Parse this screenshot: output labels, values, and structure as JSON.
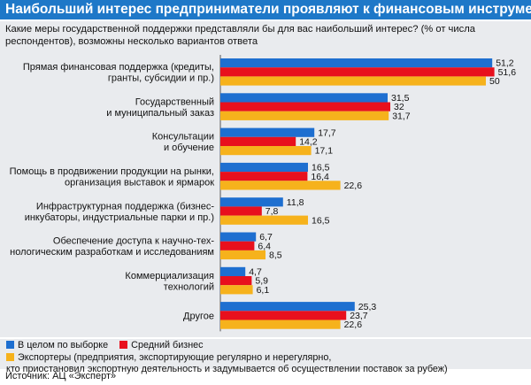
{
  "title": "Наибольший интерес предприниматели проявляют к финансовым инструментам господдержки",
  "subtitle": "Какие меры государственной поддержки представляли бы для вас наибольший интерес? (% от числа респондентов), возможны несколько вариантов ответа",
  "source": "Источник: АЦ «Эксперт»",
  "colors": {
    "series1": "#1e6fd0",
    "series2": "#e8101d",
    "series3": "#f6b21c"
  },
  "legend": [
    {
      "label": "В целом по выборке"
    },
    {
      "label": "Средний бизнес"
    },
    {
      "label": "Экспортеры (предприятия, экспортирующие регулярно и нерегулярно,"
    },
    {
      "label": "кто приостановил экспортную деятельность и задумывается об осуществлении поставок за рубеж)"
    }
  ],
  "chart_data": {
    "type": "bar",
    "orientation": "horizontal",
    "categories": [
      [
        "Прямая финансовая поддержка (кредиты,",
        "гранты, субсидии и пр.)"
      ],
      [
        "Государственный",
        "и муниципальный заказ"
      ],
      [
        "Консультации",
        "и обучение"
      ],
      [
        "Помощь в продвижении продукции на рынки,",
        "организация выставок и ярмарок"
      ],
      [
        "Инфраструктурная поддержка (бизнес-",
        "инкубаторы, индустриальные парки и пр.)"
      ],
      [
        "Обеспечение доступа к научно-тех-",
        "нологическим разработкам и исследованиям"
      ],
      [
        "Коммерциализация",
        "технологий"
      ],
      [
        "Другое"
      ]
    ],
    "series": [
      {
        "name": "В целом по выборке",
        "values": [
          51.2,
          31.5,
          17.7,
          16.5,
          11.8,
          6.7,
          4.7,
          25.3
        ],
        "labels": [
          "51,2",
          "31,5",
          "17,7",
          "16,5",
          "11,8",
          "6,7",
          "4,7",
          "25,3"
        ]
      },
      {
        "name": "Средний бизнес",
        "values": [
          51.6,
          32,
          14.2,
          16.4,
          7.8,
          6.4,
          5.9,
          23.7
        ],
        "labels": [
          "51,6",
          "32",
          "14,2",
          "16,4",
          "7,8",
          "6,4",
          "5,9",
          "23,7"
        ]
      },
      {
        "name": "Экспортеры",
        "values": [
          50,
          31.7,
          17.1,
          22.6,
          16.5,
          8.5,
          6.1,
          22.6
        ],
        "labels": [
          "50",
          "31,7",
          "17,1",
          "22,6",
          "16,5",
          "8,5",
          "6,1",
          "22,6"
        ]
      }
    ],
    "xlim": [
      0,
      55
    ]
  }
}
